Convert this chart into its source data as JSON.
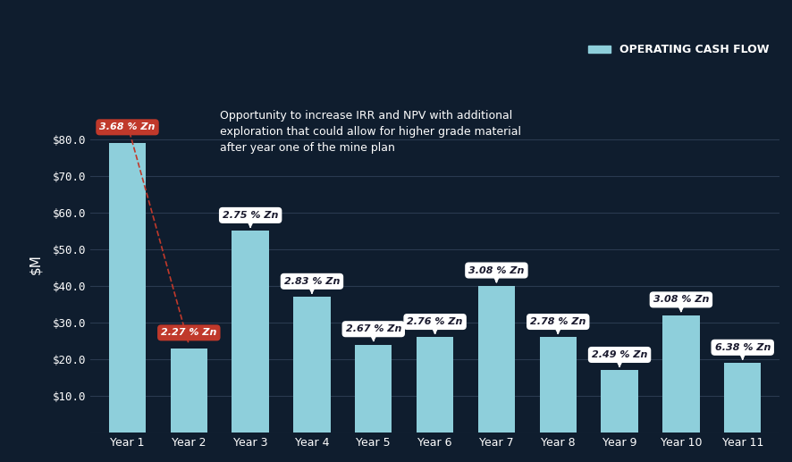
{
  "categories": [
    "Year 1",
    "Year 2",
    "Year 3",
    "Year 4",
    "Year 5",
    "Year 6",
    "Year 7",
    "Year 8",
    "Year 9",
    "Year 10",
    "Year 11"
  ],
  "values": [
    79,
    23,
    55,
    37,
    24,
    26,
    40,
    26,
    17,
    32,
    19
  ],
  "labels": [
    "3.68 % Zn",
    "2.27 % Zn",
    "2.75 % Zn",
    "2.83 % Zn",
    "2.67 % Zn",
    "2.76 % Zn",
    "3.08 % Zn",
    "2.78 % Zn",
    "2.49 % Zn",
    "3.08 % Zn",
    "6.38 % Zn"
  ],
  "label_colors": [
    "red",
    "red",
    "white",
    "white",
    "white",
    "white",
    "white",
    "white",
    "white",
    "white",
    "white"
  ],
  "bar_color": "#8ecfdb",
  "bg_color": "#0f1d2e",
  "grid_color": "#2a3a50",
  "text_color": "#ffffff",
  "yticks": [
    0,
    10,
    20,
    30,
    40,
    50,
    60,
    70,
    80
  ],
  "ytick_labels": [
    "",
    "$10.0",
    "$20.0",
    "$30.0",
    "$40.0",
    "$50.0",
    "$60.0",
    "$70.0",
    "$80.0"
  ],
  "annotation_text": "Opportunity to increase IRR and NPV with additional\nexploration that could allow for higher grade material\nafter year one of the mine plan",
  "legend_label": "OPERATING CASH FLOW",
  "legend_color": "#8ecfdb"
}
